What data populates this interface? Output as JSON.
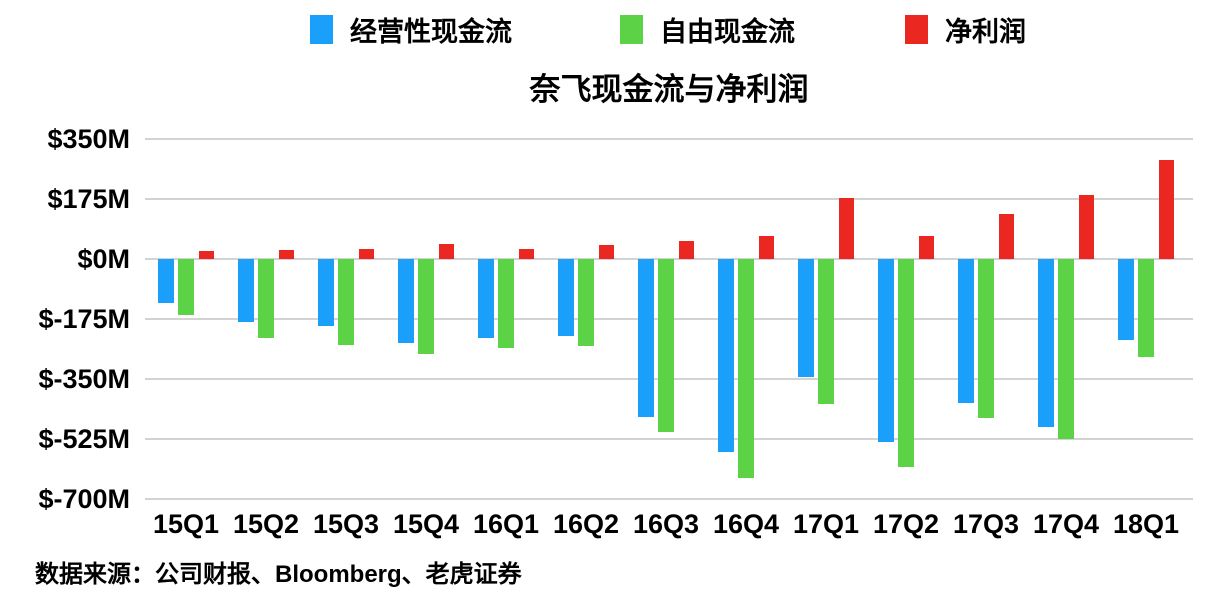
{
  "title": "奈飞现金流与净利润",
  "source": "数据来源：公司财报、Bloomberg、老虎证券",
  "colors": {
    "operating_cash_flow": "#1AA0FA",
    "free_cash_flow": "#5CD247",
    "net_profit": "#EB2721",
    "gridline": "#d3d3d3",
    "text": "#000000"
  },
  "chart_data": {
    "type": "bar",
    "title": "奈飞现金流与净利润",
    "unit": "million USD",
    "categories": [
      "15Q1",
      "15Q2",
      "15Q3",
      "15Q4",
      "16Q1",
      "16Q2",
      "16Q3",
      "16Q4",
      "17Q1",
      "17Q2",
      "17Q3",
      "17Q4",
      "18Q1"
    ],
    "series": [
      {
        "name": "经营性现金流",
        "color": "#1AA0FA",
        "values": [
          -127,
          -183,
          -196,
          -246,
          -229,
          -226,
          -462,
          -562,
          -344,
          -535,
          -420,
          -490,
          -237
        ]
      },
      {
        "name": "自由现金流",
        "color": "#5CD247",
        "values": [
          -164,
          -230,
          -252,
          -276,
          -261,
          -254,
          -506,
          -639,
          -422,
          -608,
          -465,
          -524,
          -287
        ]
      },
      {
        "name": "净利润",
        "color": "#EB2721",
        "values": [
          24,
          26,
          29,
          43,
          28,
          41,
          52,
          67,
          178,
          66,
          130,
          186,
          290
        ]
      }
    ],
    "y_ticks": [
      "$350M",
      "$175M",
      "$0M",
      "$-175M",
      "$-350M",
      "$-525M",
      "$-700M"
    ],
    "y_tick_values": [
      350,
      175,
      0,
      -175,
      -350,
      -525,
      -700
    ],
    "ylim": [
      -700,
      350
    ],
    "grid": "horizontal",
    "legend_position": "top",
    "xlabel": "",
    "ylabel": ""
  }
}
